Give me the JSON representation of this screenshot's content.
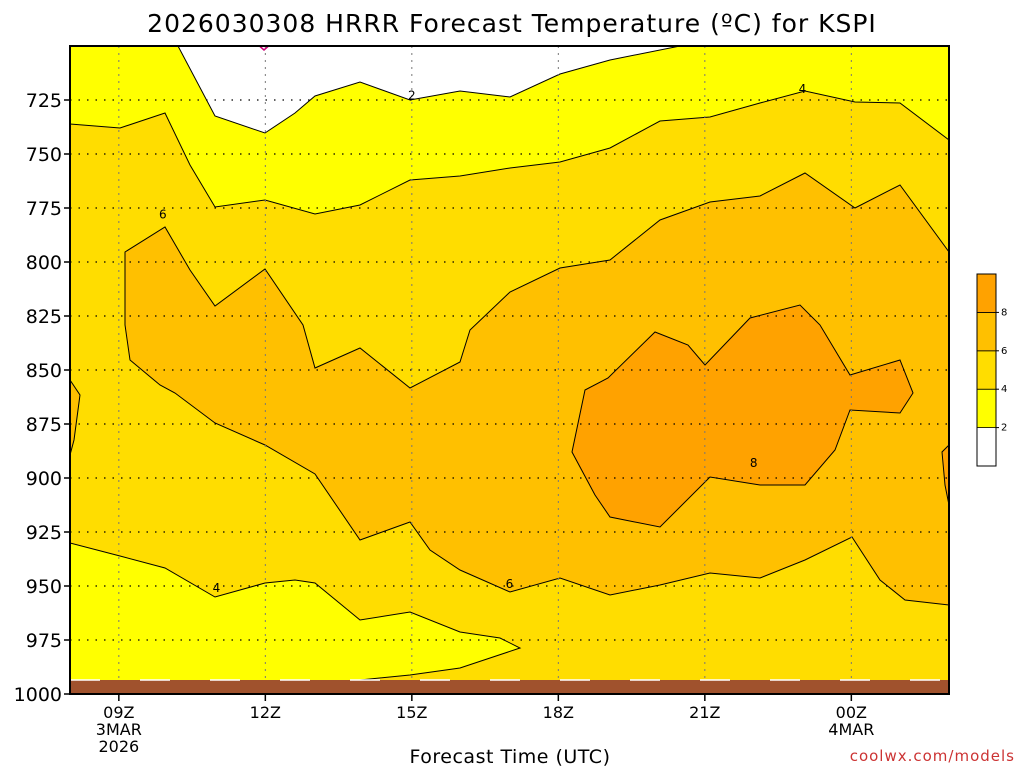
{
  "chart_data": {
    "type": "contour",
    "title": "2026030308 HRRR Forecast Temperature (ºC) for KSPI",
    "xlabel": "Forecast Time (UTC)",
    "ylabel": "",
    "credit": "coolwx.com/models",
    "x_range_hours": [
      8,
      26
    ],
    "y_range_hPa": [
      1000,
      700
    ],
    "y_ticks": [
      725,
      750,
      775,
      800,
      825,
      850,
      875,
      900,
      925,
      950,
      975,
      1000
    ],
    "x_ticks": [
      {
        "hour": 9,
        "lines": [
          "09Z",
          "3MAR",
          "2026"
        ]
      },
      {
        "hour": 12,
        "lines": [
          "12Z"
        ]
      },
      {
        "hour": 15,
        "lines": [
          "15Z"
        ]
      },
      {
        "hour": 18,
        "lines": [
          "18Z"
        ]
      },
      {
        "hour": 21,
        "lines": [
          "21Z"
        ]
      },
      {
        "hour": 24,
        "lines": [
          "00Z",
          "4MAR"
        ]
      }
    ],
    "contour_labels": [
      {
        "hour": 15.0,
        "p": 723,
        "text": "2"
      },
      {
        "hour": 23.0,
        "p": 720,
        "text": "4"
      },
      {
        "hour": 9.9,
        "p": 778,
        "text": "6"
      },
      {
        "hour": 11.0,
        "p": 951,
        "text": "4"
      },
      {
        "hour": 17.0,
        "p": 949,
        "text": "6"
      },
      {
        "hour": 22.0,
        "p": 893,
        "text": "8"
      }
    ],
    "colorbar": {
      "ticks": [
        "2",
        "4",
        "6",
        "8"
      ],
      "bands": [
        "#ffffff",
        "#ffff00",
        "#ffdd00",
        "#ffc000",
        "#ffa200"
      ]
    },
    "colors": {
      "lt2": "#ffffff",
      "c2_4": "#ffff00",
      "c4_6": "#ffdd00",
      "c6_8": "#ffc000",
      "c8_10": "#ffa200",
      "ground": "#a0522d",
      "accent": "#cc3333"
    },
    "grid": true
  }
}
